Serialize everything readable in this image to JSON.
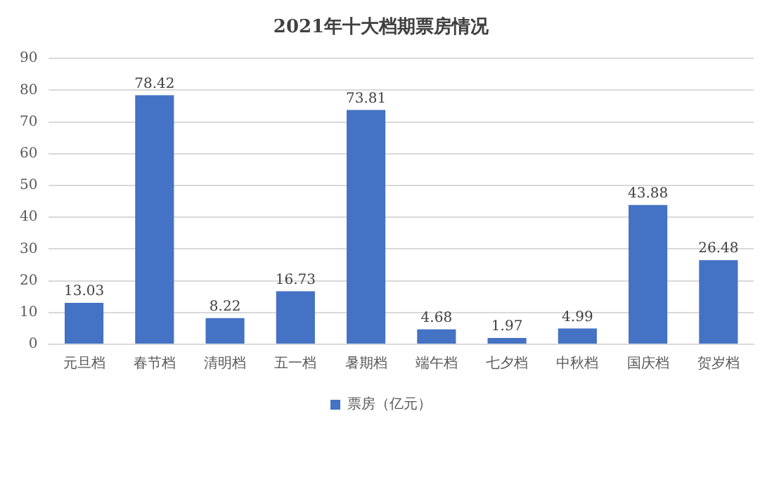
{
  "chart_data": {
    "type": "bar",
    "title": "2021年十大档期票房情况",
    "categories": [
      "元旦档",
      "春节档",
      "清明档",
      "五一档",
      "暑期档",
      "端午档",
      "七夕档",
      "中秋档",
      "国庆档",
      "贺岁档"
    ],
    "series": [
      {
        "name": "票房（亿元）",
        "color": "#4472c4",
        "values": [
          13.03,
          78.42,
          8.22,
          16.73,
          73.81,
          4.68,
          1.97,
          4.99,
          43.88,
          26.48
        ]
      }
    ],
    "ylim": [
      0,
      90
    ],
    "yticks": [
      0,
      10,
      20,
      30,
      40,
      50,
      60,
      70,
      80,
      90
    ],
    "grid": "y",
    "legend": "bottom",
    "data_labels": true
  }
}
